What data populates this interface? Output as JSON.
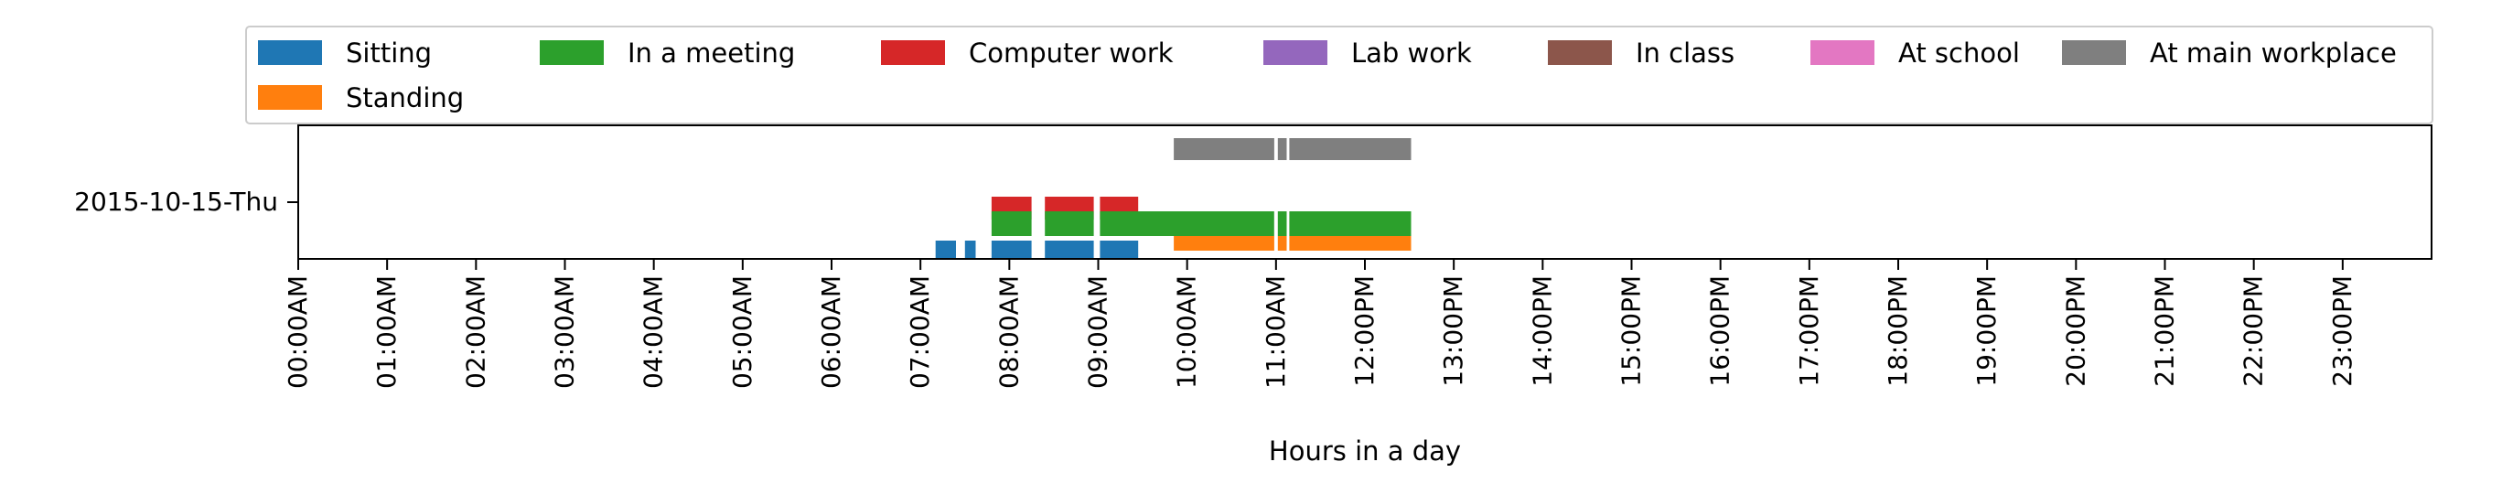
{
  "chart_data": {
    "type": "timeline",
    "xlabel": "Hours in a day",
    "ylabel": "",
    "y_categories": [
      "2015-10-15-Thu"
    ],
    "x_tick_labels": [
      "00:00AM",
      "01:00AM",
      "02:00AM",
      "03:00AM",
      "04:00AM",
      "05:00AM",
      "06:00AM",
      "07:00AM",
      "08:00AM",
      "09:00AM",
      "10:00AM",
      "11:00AM",
      "12:00PM",
      "13:00PM",
      "14:00PM",
      "15:00PM",
      "16:00PM",
      "17:00PM",
      "18:00PM",
      "19:00PM",
      "20:00PM",
      "21:00PM",
      "22:00PM",
      "23:00PM"
    ],
    "xlim": [
      0,
      24
    ],
    "legend_position": "top",
    "grid": false,
    "series": [
      {
        "name": "Sitting",
        "color": "#1f77b4",
        "segments": [
          [
            7.17,
            7.4
          ],
          [
            7.5,
            7.62
          ],
          [
            7.8,
            8.25
          ],
          [
            8.4,
            8.95
          ],
          [
            9.02,
            9.45
          ]
        ]
      },
      {
        "name": "Standing",
        "color": "#ff7f0e",
        "segments": [
          [
            9.85,
            10.98
          ],
          [
            11.02,
            11.12
          ],
          [
            11.15,
            12.52
          ]
        ]
      },
      {
        "name": "In a meeting",
        "color": "#2ca02c",
        "segments": [
          [
            7.8,
            8.25
          ],
          [
            8.4,
            8.95
          ],
          [
            9.02,
            10.98
          ],
          [
            11.02,
            11.12
          ],
          [
            11.15,
            12.52
          ]
        ]
      },
      {
        "name": "Computer work",
        "color": "#d62728",
        "segments": [
          [
            7.8,
            8.25
          ],
          [
            8.4,
            8.95
          ],
          [
            9.02,
            9.45
          ]
        ]
      },
      {
        "name": "Lab work",
        "color": "#9467bd",
        "segments": []
      },
      {
        "name": "In class",
        "color": "#8c564b",
        "segments": []
      },
      {
        "name": "At school",
        "color": "#e377c2",
        "segments": []
      },
      {
        "name": "At main workplace",
        "color": "#7f7f7f",
        "segments": [
          [
            9.85,
            10.98
          ],
          [
            11.02,
            11.12
          ],
          [
            11.15,
            12.52
          ]
        ]
      }
    ]
  }
}
